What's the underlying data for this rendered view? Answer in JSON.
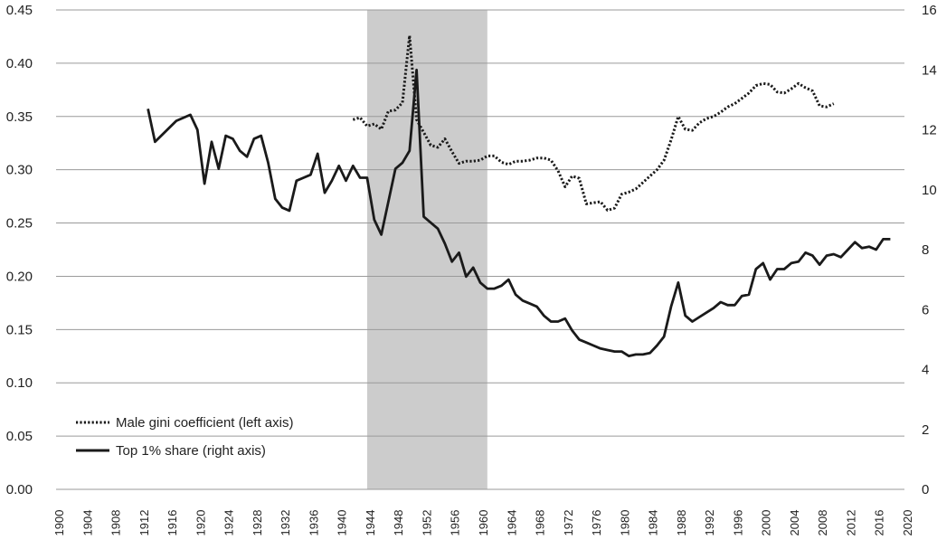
{
  "chart_data": {
    "type": "line",
    "title": "",
    "xlabel": "",
    "ylabel_left": "",
    "ylabel_right": "",
    "x_range": [
      1900,
      2020
    ],
    "x_ticks": [
      "1900",
      "1904",
      "1908",
      "1912",
      "1916",
      "1920",
      "1924",
      "1928",
      "1932",
      "1936",
      "1940",
      "1944",
      "1948",
      "1952",
      "1956",
      "1960",
      "1964",
      "1968",
      "1972",
      "1976",
      "1980",
      "1984",
      "1988",
      "1992",
      "1996",
      "2000",
      "2004",
      "2008",
      "2012",
      "2016",
      "2020"
    ],
    "y_left_range": [
      0,
      0.45
    ],
    "y_left_ticks": [
      "0.00",
      "0.05",
      "0.10",
      "0.15",
      "0.20",
      "0.25",
      "0.30",
      "0.35",
      "0.40",
      "0.45"
    ],
    "y_right_range": [
      0,
      16
    ],
    "y_right_ticks": [
      "0",
      "2",
      "4",
      "6",
      "8",
      "10",
      "12",
      "14",
      "16"
    ],
    "grid": "horizontal",
    "legend_position": "bottom-left",
    "shaded_region": {
      "from": 1944,
      "to": 1961,
      "color": "#cccccc"
    },
    "series": [
      {
        "name": "Male gini coefficient (left axis)",
        "axis": "left",
        "style": "dotted",
        "color": "#1a1a1a",
        "points": [
          [
            1942,
            0.347
          ],
          [
            1943,
            0.349
          ],
          [
            1944,
            0.341
          ],
          [
            1945,
            0.343
          ],
          [
            1946,
            0.338
          ],
          [
            1947,
            0.355
          ],
          [
            1948,
            0.356
          ],
          [
            1949,
            0.363
          ],
          [
            1950,
            0.426
          ],
          [
            1951,
            0.347
          ],
          [
            1952,
            0.335
          ],
          [
            1953,
            0.323
          ],
          [
            1954,
            0.321
          ],
          [
            1955,
            0.329
          ],
          [
            1956,
            0.317
          ],
          [
            1957,
            0.306
          ],
          [
            1958,
            0.308
          ],
          [
            1959,
            0.308
          ],
          [
            1960,
            0.309
          ],
          [
            1961,
            0.313
          ],
          [
            1962,
            0.313
          ],
          [
            1963,
            0.307
          ],
          [
            1964,
            0.305
          ],
          [
            1965,
            0.308
          ],
          [
            1966,
            0.308
          ],
          [
            1967,
            0.309
          ],
          [
            1968,
            0.311
          ],
          [
            1969,
            0.311
          ],
          [
            1970,
            0.309
          ],
          [
            1971,
            0.299
          ],
          [
            1972,
            0.284
          ],
          [
            1973,
            0.294
          ],
          [
            1974,
            0.292
          ],
          [
            1975,
            0.268
          ],
          [
            1976,
            0.269
          ],
          [
            1977,
            0.27
          ],
          [
            1978,
            0.262
          ],
          [
            1979,
            0.264
          ],
          [
            1980,
            0.277
          ],
          [
            1981,
            0.279
          ],
          [
            1982,
            0.282
          ],
          [
            1983,
            0.288
          ],
          [
            1984,
            0.294
          ],
          [
            1985,
            0.3
          ],
          [
            1986,
            0.309
          ],
          [
            1987,
            0.328
          ],
          [
            1988,
            0.35
          ],
          [
            1989,
            0.338
          ],
          [
            1990,
            0.337
          ],
          [
            1991,
            0.344
          ],
          [
            1992,
            0.348
          ],
          [
            1993,
            0.35
          ],
          [
            1994,
            0.354
          ],
          [
            1995,
            0.359
          ],
          [
            1996,
            0.362
          ],
          [
            1997,
            0.367
          ],
          [
            1998,
            0.372
          ],
          [
            1999,
            0.379
          ],
          [
            2000,
            0.381
          ],
          [
            2001,
            0.38
          ],
          [
            2002,
            0.373
          ],
          [
            2003,
            0.372
          ],
          [
            2004,
            0.376
          ],
          [
            2005,
            0.381
          ],
          [
            2006,
            0.377
          ],
          [
            2007,
            0.374
          ],
          [
            2008,
            0.36
          ],
          [
            2009,
            0.359
          ],
          [
            2010,
            0.362
          ]
        ]
      },
      {
        "name": "Top 1% share (right axis)",
        "axis": "right",
        "style": "solid",
        "color": "#1a1a1a",
        "points": [
          [
            1913,
            12.7
          ],
          [
            1914,
            11.6
          ],
          [
            1917,
            12.3
          ],
          [
            1919,
            12.5
          ],
          [
            1920,
            12.0
          ],
          [
            1921,
            10.2
          ],
          [
            1922,
            11.6
          ],
          [
            1923,
            10.7
          ],
          [
            1924,
            11.8
          ],
          [
            1925,
            11.7
          ],
          [
            1926,
            11.3
          ],
          [
            1927,
            11.1
          ],
          [
            1928,
            11.7
          ],
          [
            1929,
            11.8
          ],
          [
            1930,
            10.9
          ],
          [
            1931,
            9.7
          ],
          [
            1932,
            9.4
          ],
          [
            1933,
            9.3
          ],
          [
            1934,
            10.3
          ],
          [
            1935,
            10.4
          ],
          [
            1936,
            10.5
          ],
          [
            1937,
            11.2
          ],
          [
            1938,
            9.9
          ],
          [
            1939,
            10.3
          ],
          [
            1940,
            10.8
          ],
          [
            1941,
            10.3
          ],
          [
            1942,
            10.8
          ],
          [
            1943,
            10.4
          ],
          [
            1944,
            10.4
          ],
          [
            1945,
            9.0
          ],
          [
            1946,
            8.5
          ],
          [
            1947,
            9.6
          ],
          [
            1948,
            10.7
          ],
          [
            1949,
            10.9
          ],
          [
            1950,
            11.3
          ],
          [
            1951,
            14.0
          ],
          [
            1952,
            9.1
          ],
          [
            1953,
            8.9
          ],
          [
            1954,
            8.7
          ],
          [
            1955,
            8.2
          ],
          [
            1956,
            7.6
          ],
          [
            1957,
            7.9
          ],
          [
            1958,
            7.1
          ],
          [
            1959,
            7.4
          ],
          [
            1960,
            6.9
          ],
          [
            1961,
            6.7
          ],
          [
            1962,
            6.7
          ],
          [
            1963,
            6.8
          ],
          [
            1964,
            7.0
          ],
          [
            1965,
            6.5
          ],
          [
            1966,
            6.3
          ],
          [
            1967,
            6.2
          ],
          [
            1968,
            6.1
          ],
          [
            1969,
            5.8
          ],
          [
            1970,
            5.6
          ],
          [
            1971,
            5.6
          ],
          [
            1972,
            5.7
          ],
          [
            1973,
            5.3
          ],
          [
            1974,
            5.0
          ],
          [
            1975,
            4.9
          ],
          [
            1976,
            4.8
          ],
          [
            1977,
            4.7
          ],
          [
            1978,
            4.65
          ],
          [
            1979,
            4.6
          ],
          [
            1980,
            4.6
          ],
          [
            1981,
            4.45
          ],
          [
            1982,
            4.5
          ],
          [
            1983,
            4.5
          ],
          [
            1984,
            4.55
          ],
          [
            1985,
            4.8
          ],
          [
            1986,
            5.1
          ],
          [
            1987,
            6.1
          ],
          [
            1988,
            6.9
          ],
          [
            1989,
            5.8
          ],
          [
            1990,
            5.6
          ],
          [
            1991,
            5.75
          ],
          [
            1992,
            5.9
          ],
          [
            1993,
            6.05
          ],
          [
            1994,
            6.25
          ],
          [
            1995,
            6.15
          ],
          [
            1996,
            6.15
          ],
          [
            1997,
            6.45
          ],
          [
            1998,
            6.5
          ],
          [
            1999,
            7.35
          ],
          [
            2000,
            7.55
          ],
          [
            2001,
            7.0
          ],
          [
            2002,
            7.35
          ],
          [
            2003,
            7.35
          ],
          [
            2004,
            7.55
          ],
          [
            2005,
            7.6
          ],
          [
            2006,
            7.9
          ],
          [
            2007,
            7.8
          ],
          [
            2008,
            7.5
          ],
          [
            2009,
            7.8
          ],
          [
            2010,
            7.85
          ],
          [
            2011,
            7.75
          ],
          [
            2012,
            8.0
          ],
          [
            2013,
            8.25
          ],
          [
            2014,
            8.05
          ],
          [
            2015,
            8.1
          ],
          [
            2016,
            8.0
          ],
          [
            2017,
            8.35
          ],
          [
            2018,
            8.35
          ]
        ]
      }
    ]
  }
}
